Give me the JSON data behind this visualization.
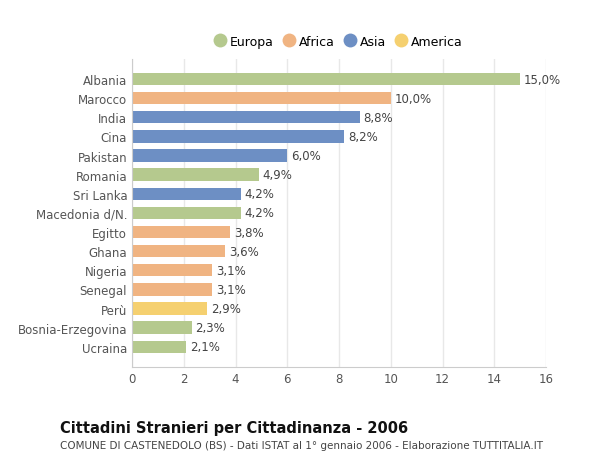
{
  "categories": [
    "Albania",
    "Marocco",
    "India",
    "Cina",
    "Pakistan",
    "Romania",
    "Sri Lanka",
    "Macedonia d/N.",
    "Egitto",
    "Ghana",
    "Nigeria",
    "Senegal",
    "Perù",
    "Bosnia-Erzegovina",
    "Ucraina"
  ],
  "values": [
    15.0,
    10.0,
    8.8,
    8.2,
    6.0,
    4.9,
    4.2,
    4.2,
    3.8,
    3.6,
    3.1,
    3.1,
    2.9,
    2.3,
    2.1
  ],
  "continents": [
    "Europa",
    "Africa",
    "Asia",
    "Asia",
    "Asia",
    "Europa",
    "Asia",
    "Europa",
    "Africa",
    "Africa",
    "Africa",
    "Africa",
    "America",
    "Europa",
    "Europa"
  ],
  "colors": {
    "Europa": "#b5c98e",
    "Africa": "#f0b482",
    "Asia": "#6d8fc4",
    "America": "#f5d070"
  },
  "legend_order": [
    "Europa",
    "Africa",
    "Asia",
    "America"
  ],
  "title": "Cittadini Stranieri per Cittadinanza - 2006",
  "subtitle": "COMUNE DI CASTENEDOLO (BS) - Dati ISTAT al 1° gennaio 2006 - Elaborazione TUTTITALIA.IT",
  "xlim": [
    0,
    16
  ],
  "xticks": [
    0,
    2,
    4,
    6,
    8,
    10,
    12,
    14,
    16
  ],
  "background_color": "#ffffff",
  "plot_bg_color": "#ffffff",
  "grid_color": "#e8e8e8",
  "bar_height": 0.65,
  "label_fontsize": 8.5,
  "tick_fontsize": 8.5,
  "title_fontsize": 10.5,
  "subtitle_fontsize": 7.5
}
